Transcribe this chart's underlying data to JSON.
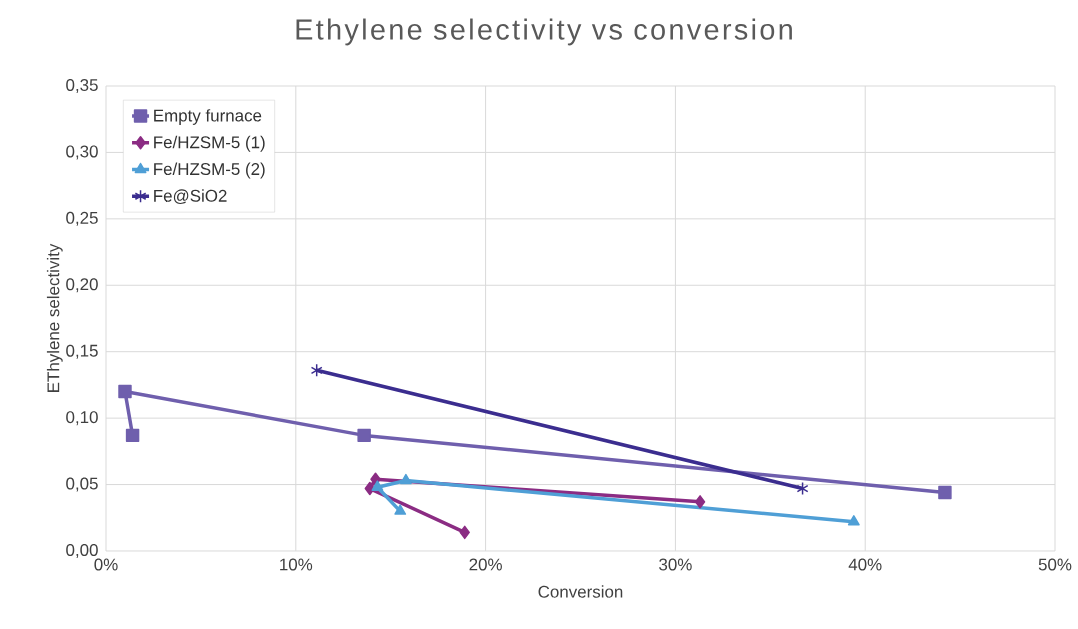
{
  "chart_data": {
    "type": "line",
    "title": "Ethylene selectivity vs conversion",
    "xlabel": "Conversion",
    "ylabel": "EThylene selectivity",
    "series": [
      {
        "name": "Empty furnace",
        "color": "#6f5fad",
        "marker": "square",
        "x": [
          0.014,
          0.01,
          0.136,
          0.442
        ],
        "values": [
          0.087,
          0.12,
          0.087,
          0.044
        ]
      },
      {
        "name": "Fe/HZSM-5 (1)",
        "color": "#8b2c83",
        "marker": "diamond",
        "x": [
          0.189,
          0.139,
          0.142,
          0.313
        ],
        "values": [
          0.014,
          0.047,
          0.054,
          0.037
        ]
      },
      {
        "name": "Fe/HZSM-5 (2)",
        "color": "#4f9fd6",
        "marker": "triangle",
        "x": [
          0.155,
          0.143,
          0.158,
          0.394
        ],
        "values": [
          0.03,
          0.048,
          0.053,
          0.022
        ]
      },
      {
        "name": "Fe@SiO2",
        "color": "#3b2d8f",
        "marker": "cross",
        "x": [
          0.111,
          0.367
        ],
        "values": [
          0.136,
          0.047
        ]
      }
    ],
    "xlim": [
      0,
      0.5
    ],
    "xticks": [
      {
        "value": 0,
        "label": "0%"
      },
      {
        "value": 0.1,
        "label": "10%"
      },
      {
        "value": 0.2,
        "label": "20%"
      },
      {
        "value": 0.3,
        "label": "30%"
      },
      {
        "value": 0.4,
        "label": "40%"
      },
      {
        "value": 0.5,
        "label": "50%"
      }
    ],
    "ylim": [
      0,
      0.35
    ],
    "yticks": [
      {
        "value": 0,
        "label": "0,00"
      },
      {
        "value": 0.05,
        "label": "0,05"
      },
      {
        "value": 0.1,
        "label": "0,10"
      },
      {
        "value": 0.15,
        "label": "0,15"
      },
      {
        "value": 0.2,
        "label": "0,20"
      },
      {
        "value": 0.25,
        "label": "0,25"
      },
      {
        "value": 0.3,
        "label": "0,30"
      },
      {
        "value": 0.35,
        "label": "0,35"
      }
    ],
    "grid": true,
    "legend": "top left",
    "line_style": "solid"
  }
}
